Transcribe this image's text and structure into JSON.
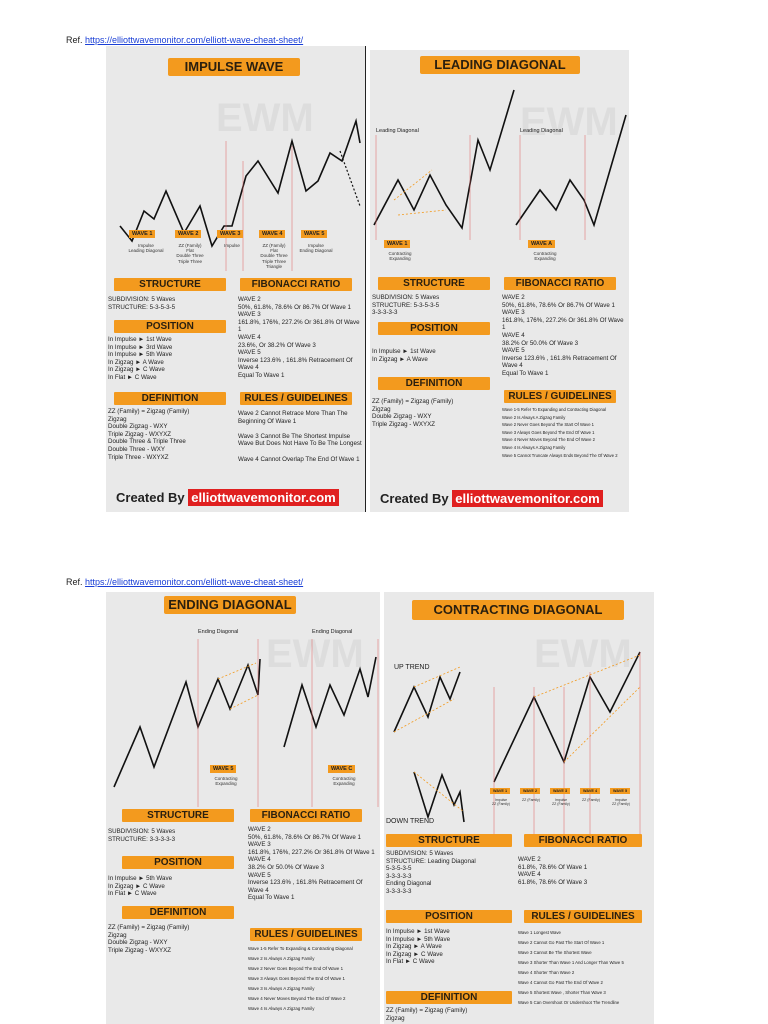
{
  "ref": {
    "label": "Ref.",
    "url": "https://elliottwavemonitor.com/elliott-wave-cheat-sheet/"
  },
  "impulse": {
    "title": "IMPULSE WAVE",
    "wave_labels": [
      "WAVE 1",
      "WAVE 2",
      "WAVE 3",
      "WAVE 4",
      "WAVE 5"
    ],
    "wave_subs": [
      "Impulse\nLeading Diagonal",
      "ZZ (Family)\nFlat\nDouble Three\nTriple Three",
      "Impulse",
      "ZZ (Family)\nFlat\nDouble Three\nTriple Three\nTriangle",
      "Impulse\nEnding Diagonal"
    ],
    "structure_h": "STRUCTURE",
    "structure": "SUBDIVISION: 5 Waves\nSTRUCTURE:  5-3-5-3-5",
    "position_h": "POSITION",
    "position": "In Impulse  ►  1st Wave\nIn Impulse  ►  3rd Wave\nIn Impulse  ►  5th Wave\nIn Zigzag   ►  A Wave\nIn Zigzag   ►  C Wave\nIn Flat       ►  C Wave",
    "definition_h": "DEFINITION",
    "definition": "ZZ (Family) = Zigzag (Family)\nZigzag\nDouble Zigzag - WXY\nTriple Zigzag - WXYXZ\nDouble Three & Triple Three\nDouble Three - WXY\nTriple Three - WXYXZ",
    "fib_h": "FIBONACCI RATIO",
    "fib": "WAVE 2\n50%, 61.8%, 78.6% Or 86.7% Of Wave 1\nWAVE 3\n161.8%, 176%, 227.2% Or 361.8% Of Wave 1\nWAVE 4\n23.6%, Or 38.2% Of Wave 3\nWAVE 5\nInverse 123.6% , 161.8% Retracement Of Wave 4\nEqual To Wave 1",
    "rules_h": "RULES / GUIDELINES",
    "rules": "Wave 2 Cannot Retrace More Than The\nBeginning Of Wave 1\n\nWave 3 Cannot Be The Shortest Impulse\nWave But Does Not Have To Be The Longest\n\nWave 4 Cannot Overlap The End Of Wave 1",
    "created": "Created By",
    "site": "elliottwavemonitor.com"
  },
  "leading": {
    "title": "LEADING DIAGONAL",
    "chart_title_1": "Leading Diagonal",
    "chart_title_2": "Leading Diagonal",
    "wave_labels": [
      "WAVE 1",
      "WAVE A"
    ],
    "wave_subs": [
      "Contracting\nExpanding",
      "Contracting\nExpanding"
    ],
    "structure_h": "STRUCTURE",
    "structure": "SUBDIVISION: 5 Waves\nSTRUCTURE:  5-3-5-3-5\n                      3-3-3-3-3",
    "position_h": "POSITION",
    "position": "In Impulse  ►  1st Wave\nIn Zigzag   ►  A Wave",
    "definition_h": "DEFINITION",
    "definition": "ZZ (Family) = Zigzag (Family)\nZigzag\nDouble Zigzag - WXY\nTriple Zigzag - WXYXZ",
    "fib_h": "FIBONACCI RATIO",
    "fib": "WAVE 2\n50%, 61.8%, 78.6% Or 86.7% Of Wave 1\nWAVE 3\n161.8%, 176%, 227.2% Or 361.8% Of Wave 1\nWAVE 4\n38.2% Or 50.0% Of Wave 3\nWAVE 5\nInverse 123.6% , 161.8% Retracement Of Wave 4\nEqual To Wave 1",
    "rules_h": "RULES / GUIDELINES",
    "rules": "Wave 1-5 Refer To Expanding and Contracting Diagonal\nWave 2 Is Always A Zigzag Family\nWave 2 Never Goes Beyond The Start Of Wave 1\nWave 3 Always Goes Beyond The End Of Wave 1\nWave 4 Never Moves Beyond The End Of Wave 2\nWave 4 Is Always A Zigzag Family\nWave 5 Cannot Truncate Always Ends Beyond The Of Wave 2",
    "created": "Created By",
    "site": "elliottwavemonitor.com"
  },
  "ending": {
    "title": "ENDING DIAGONAL",
    "chart_title_1": "Ending Diagonal",
    "chart_title_2": "Ending Diagonal",
    "wave_labels": [
      "WAVE 5",
      "WAVE C"
    ],
    "wave_subs": [
      "Contracting\nExpanding",
      "Contracting\nExpanding"
    ],
    "structure_h": "STRUCTURE",
    "structure": "SUBDIVISION: 5 Waves\nSTRUCTURE:  3-3-3-3-3",
    "position_h": "POSITION",
    "position": "In Impulse  ►  5th Wave\nIn Zigzag   ►  C Wave\nIn Flat       ►  C Wave",
    "definition_h": "DEFINITION",
    "definition": "ZZ (Family) = Zigzag (Family)\nZigzag\nDouble Zigzag - WXY\nTriple Zigzag - WXYXZ",
    "fib_h": "FIBONACCI RATIO",
    "fib": "WAVE 2\n50%, 61.8%, 78.6% Or 86.7% Of Wave 1\nWAVE 3\n161.8%, 176%, 227.2% Or 361.8% Of Wave 1\nWAVE 4\n38.2% Or 50.0% Of Wave 3\nWAVE 5\nInverse 123.6% , 161.8% Retracement Of Wave 4\nEqual To Wave 1",
    "rules_h": "RULES / GUIDELINES",
    "rules": "Wave 1-5 Refer To Expanding & Contracting Diagonal\nWave 2 Is Always A Zigzag Family\nWave 2 Never Goes Beyond The End Of Wave 1\nWave 3 Always Goes Beyond The End Of Wave 1\nWave 3 Is Always A Zigzag Family\nWave 4 Never Moves Beyond The End Of Wave 2\nWave 4 Is Always A Zigzag Family"
  },
  "contracting": {
    "title": "CONTRACTING DIAGONAL",
    "up_trend": "UP TREND",
    "down_trend": "DOWN TREND",
    "wave_labels": [
      "WAVE 1",
      "WAVE 2",
      "WAVE 3",
      "WAVE 4",
      "WAVE 5"
    ],
    "wave_subs": [
      "Impulse\nZZ (Family)",
      "ZZ (Family)",
      "Impulse\nZZ (Family)",
      "ZZ (Family)",
      "Impulse\nZZ (Family)"
    ],
    "structure_h": "STRUCTURE",
    "structure": "SUBDIVISION: 5 Waves\nSTRUCTURE:   Leading Diagonal\n                        5-3-5-3-5\n                        3-3-3-3-3\n                      Ending Diagonal\n                        3-3-3-3-3",
    "position_h": "POSITION",
    "position": "In Impulse  ►  1st Wave\nIn Impulse  ►  5th Wave\nIn Zigzag   ►  A Wave\nIn Zigzag   ►  C Wave\nIn Flat       ►  C Wave",
    "definition_h": "DEFINITION",
    "definition": "ZZ (Family) = Zigzag (Family)\nZigzag",
    "fib_h": "FIBONACCI RATIO",
    "fib": "WAVE 2\n61.8%, 78.6% Of Wave 1\nWAVE 4\n61.8%, 78.6% Of Wave 3",
    "rules_h": "RULES / GUIDELINES",
    "rules": "Wave 1 Longest Wave\nWave 2 Cannot Go Past The Start Of Wave 1\nWave 3 Cannot Be The Shortest Wave\nWave 3 Shorter Than Wave 1 And Longer Than Wave 5\nWave 4 Shorter Than Wave 2\nWave 4 Cannot Go Past The End Of Wave 2\nWave 5 Shortest Wave , Shorter Than Wave 3\nWave 5 Can Overshoot Or Undershoot The Trendline"
  },
  "watermark": "EWM",
  "colors": {
    "accent": "#f39a1e",
    "red": "#e02020",
    "green": "#1a8a2a",
    "line": "#111111"
  }
}
